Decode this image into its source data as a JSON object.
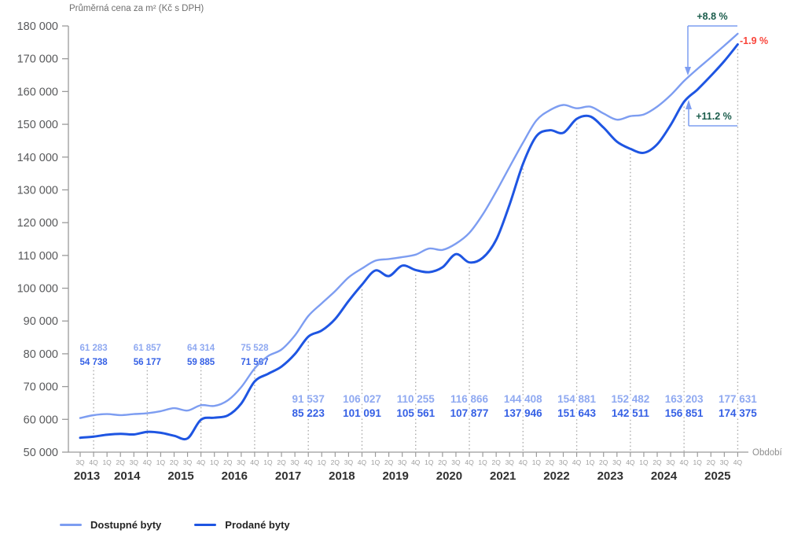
{
  "title": "Průměrná cena za m² (Kč s DPH)",
  "x_axis_title": "Období",
  "annotations": {
    "dostupne_yoy_change": "+8.8 %",
    "prodane_yoy_change": "+11.2 %",
    "gap_change": "-1.9 %"
  },
  "legend": {
    "dostupne_label": "Dostupné byty",
    "prodane_label": "Prodané byty"
  },
  "colors": {
    "dostupne_line": "#7d9df1",
    "prodane_line": "#1e55e2",
    "dostupne_value_label": "#8fa9f1",
    "prodane_value_label": "#3560e5",
    "positive_green": "#1a5c4b",
    "negative_red": "#f9453b",
    "axis": "#9b9b9b",
    "dotted_guide": "#ababab",
    "ytick_text": "#58595b",
    "quarter_text": "#9e9e9e",
    "year_text": "#303030"
  },
  "chart_data": {
    "type": "line",
    "title": "Průměrná cena za m² (Kč s DPH)",
    "xlabel": "Období",
    "ylim": [
      50000,
      180000
    ],
    "ytick_step": 10000,
    "grid": false,
    "legend_position": "bottom-left",
    "quarter_labels": [
      "3Q",
      "4Q",
      "1Q",
      "2Q",
      "3Q",
      "4Q",
      "1Q",
      "2Q",
      "3Q",
      "4Q",
      "1Q",
      "2Q",
      "3Q",
      "4Q",
      "1Q",
      "2Q",
      "3Q",
      "4Q",
      "1Q",
      "2Q",
      "3Q",
      "4Q",
      "1Q",
      "2Q",
      "3Q",
      "4Q",
      "1Q",
      "2Q",
      "3Q",
      "4Q",
      "1Q",
      "2Q",
      "3Q",
      "4Q",
      "1Q",
      "2Q",
      "3Q",
      "4Q",
      "1Q",
      "2Q",
      "3Q",
      "4Q",
      "1Q",
      "2Q",
      "3Q",
      "4Q",
      "1Q",
      "2Q",
      "3Q",
      "4Q"
    ],
    "years": [
      {
        "label": "2013",
        "center_index": 0.5
      },
      {
        "label": "2014",
        "center_index": 3.5
      },
      {
        "label": "2015",
        "center_index": 7.5
      },
      {
        "label": "2016",
        "center_index": 11.5
      },
      {
        "label": "2017",
        "center_index": 15.5
      },
      {
        "label": "2018",
        "center_index": 19.5
      },
      {
        "label": "2019",
        "center_index": 23.5
      },
      {
        "label": "2020",
        "center_index": 27.5
      },
      {
        "label": "2021",
        "center_index": 31.5
      },
      {
        "label": "2022",
        "center_index": 35.5
      },
      {
        "label": "2023",
        "center_index": 39.5
      },
      {
        "label": "2024",
        "center_index": 43.5
      },
      {
        "label": "2025",
        "center_index": 47.5
      }
    ],
    "series": [
      {
        "name": "Dostupné byty",
        "color": "#7d9df1",
        "values": [
          60400,
          61283,
          61600,
          61300,
          61600,
          61857,
          62500,
          63400,
          62700,
          64314,
          64100,
          65800,
          69800,
          75528,
          79300,
          81300,
          85600,
          91537,
          95400,
          99100,
          103300,
          106027,
          108400,
          108900,
          109500,
          110255,
          112100,
          111700,
          113600,
          116866,
          122500,
          129500,
          137000,
          144408,
          151200,
          154300,
          155900,
          154881,
          155400,
          153300,
          151400,
          152482,
          153000,
          155400,
          158900,
          163203,
          166900,
          170400,
          174000,
          177631
        ]
      },
      {
        "name": "Prodané byty",
        "color": "#1e55e2",
        "values": [
          54400,
          54738,
          55300,
          55600,
          55400,
          56177,
          55900,
          55000,
          54200,
          59885,
          60500,
          61200,
          64800,
          71567,
          73900,
          76100,
          79900,
          85223,
          87100,
          90600,
          96100,
          101091,
          105400,
          103700,
          106900,
          105561,
          104900,
          106400,
          110400,
          107877,
          109300,
          114800,
          125500,
          137946,
          146400,
          148200,
          147400,
          151643,
          152400,
          149000,
          144700,
          142511,
          141300,
          143900,
          149800,
          156851,
          160600,
          164800,
          169300,
          174375
        ]
      }
    ],
    "labeled_points": [
      {
        "quarter": "4Q 2013",
        "index": 1,
        "dostupne": 61283,
        "prodane": 54738
      },
      {
        "quarter": "4Q 2014",
        "index": 5,
        "dostupne": 61857,
        "prodane": 56177
      },
      {
        "quarter": "4Q 2015",
        "index": 9,
        "dostupne": 64314,
        "prodane": 59885
      },
      {
        "quarter": "4Q 2016",
        "index": 13,
        "dostupne": 75528,
        "prodane": 71567
      },
      {
        "quarter": "4Q 2017",
        "index": 17,
        "dostupne": 91537,
        "prodane": 85223
      },
      {
        "quarter": "4Q 2018",
        "index": 21,
        "dostupne": 106027,
        "prodane": 101091
      },
      {
        "quarter": "4Q 2019",
        "index": 25,
        "dostupne": 110255,
        "prodane": 105561
      },
      {
        "quarter": "4Q 2020",
        "index": 29,
        "dostupne": 116866,
        "prodane": 107877
      },
      {
        "quarter": "4Q 2021",
        "index": 33,
        "dostupne": 144408,
        "prodane": 137946
      },
      {
        "quarter": "4Q 2022",
        "index": 37,
        "dostupne": 154881,
        "prodane": 151643
      },
      {
        "quarter": "4Q 2023",
        "index": 41,
        "dostupne": 152482,
        "prodane": 142511
      },
      {
        "quarter": "4Q 2024",
        "index": 45,
        "dostupne": 163203,
        "prodane": 156851
      },
      {
        "quarter": "4Q 2025",
        "index": 49,
        "dostupne": 177631,
        "prodane": 174375
      }
    ]
  }
}
